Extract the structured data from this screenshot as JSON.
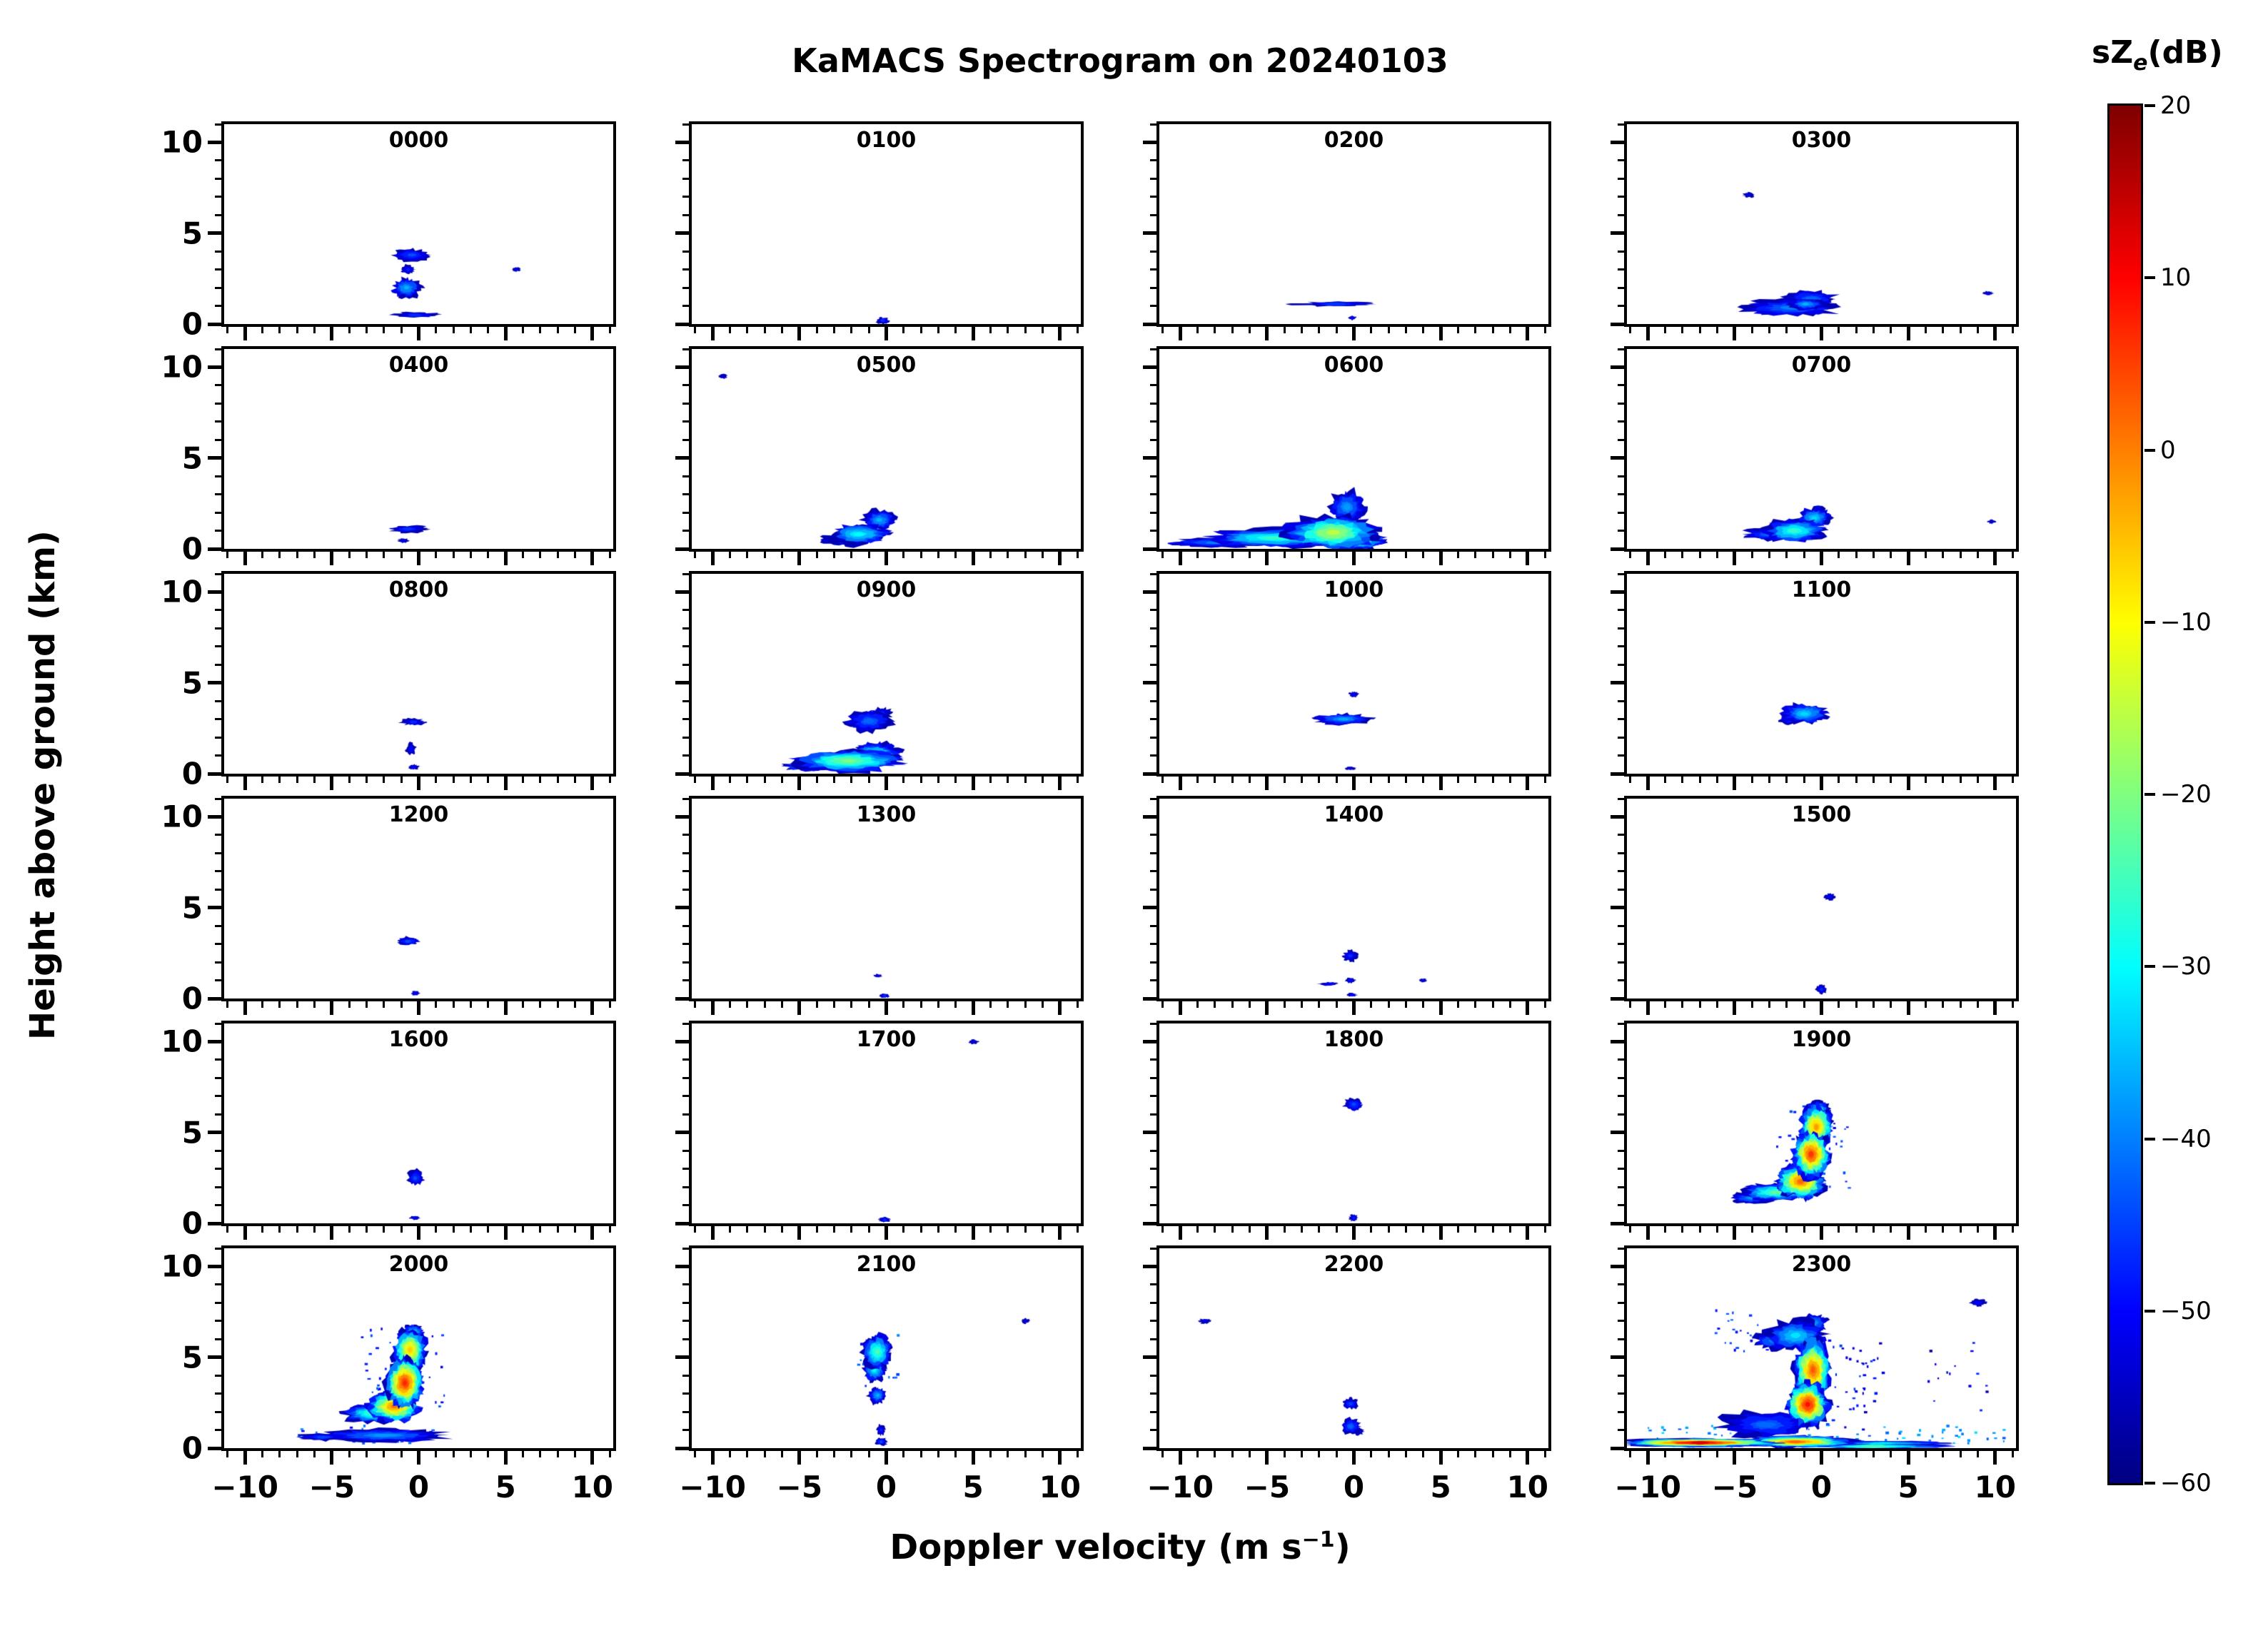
{
  "title": "KaMACS Spectrogram on 20240103",
  "xlabel": {
    "prefix": "Doppler velocity (m s",
    "sup": "−1",
    "suffix": ")"
  },
  "ylabel": "Height above ground (km)",
  "colorbar": {
    "title_prefix": "sZ",
    "title_sub": "e",
    "title_suffix": "(dB)",
    "min": -60,
    "max": 20,
    "colormap": "jet",
    "ticks": [
      {
        "value": 20,
        "label": "20"
      },
      {
        "value": 10,
        "label": "10"
      },
      {
        "value": 0,
        "label": "0"
      },
      {
        "value": -10,
        "label": "−10"
      },
      {
        "value": -20,
        "label": "−20"
      },
      {
        "value": -30,
        "label": "−30"
      },
      {
        "value": -40,
        "label": "−40"
      },
      {
        "value": -50,
        "label": "−50"
      },
      {
        "value": -60,
        "label": "−60"
      }
    ]
  },
  "axes": {
    "x_range": [
      -11.2,
      11.2
    ],
    "y_range": [
      0,
      11
    ],
    "x_major_ticks": [
      {
        "value": -10,
        "label": "−10"
      },
      {
        "value": -5,
        "label": "−5"
      },
      {
        "value": 0,
        "label": "0"
      },
      {
        "value": 5,
        "label": "5"
      },
      {
        "value": 10,
        "label": "10"
      }
    ],
    "y_major_ticks": [
      {
        "value": 0,
        "label": "0"
      },
      {
        "value": 5,
        "label": "5"
      },
      {
        "value": 10,
        "label": "10"
      }
    ],
    "x_minor_step": 1,
    "y_minor_step": 1
  },
  "chart_data": {
    "type": "heatmap",
    "title": "KaMACS Spectrogram on 20240103",
    "xlabel": "Doppler velocity (m s⁻¹)",
    "ylabel": "Height above ground (km)",
    "value_label": "sZe (dB)",
    "value_range": [
      -60,
      20
    ],
    "blob_format": "[doppler_velocity_m_s, height_km, half_width_m_s, half_height_km, peak_dB]",
    "speckle_format": "[doppler_velocity_m_s, height_km, half_width_m_s, half_height_km, dB, count]",
    "panels": [
      {
        "label": "0000",
        "blobs": [
          [
            -0.4,
            3.8,
            1.0,
            0.35,
            -44
          ],
          [
            -0.7,
            2.0,
            0.8,
            0.55,
            -36
          ],
          [
            -0.6,
            3.0,
            0.4,
            0.25,
            -48
          ],
          [
            -0.2,
            0.5,
            1.4,
            0.15,
            -47
          ],
          [
            5.6,
            3.0,
            0.25,
            0.12,
            -52
          ]
        ],
        "speckles": []
      },
      {
        "label": "0100",
        "blobs": [
          [
            -0.2,
            0.2,
            0.35,
            0.18,
            -46
          ]
        ],
        "speckles": []
      },
      {
        "label": "0200",
        "blobs": [
          [
            -1.0,
            1.1,
            2.2,
            0.13,
            -46
          ],
          [
            -0.1,
            0.35,
            0.25,
            0.12,
            -50
          ]
        ],
        "speckles": []
      },
      {
        "label": "0300",
        "blobs": [
          [
            -1.8,
            0.9,
            2.8,
            0.45,
            -40
          ],
          [
            -0.6,
            1.4,
            1.5,
            0.45,
            -42
          ],
          [
            -0.9,
            1.1,
            1.0,
            0.3,
            -36
          ],
          [
            -4.2,
            7.1,
            0.35,
            0.15,
            -52
          ],
          [
            9.6,
            1.7,
            0.3,
            0.12,
            -53
          ]
        ],
        "speckles": []
      },
      {
        "label": "0400",
        "blobs": [
          [
            -0.6,
            1.1,
            1.1,
            0.2,
            -46
          ],
          [
            -0.9,
            0.45,
            0.35,
            0.12,
            -51
          ]
        ],
        "speckles": []
      },
      {
        "label": "0500",
        "blobs": [
          [
            -1.6,
            0.8,
            1.7,
            0.55,
            -30
          ],
          [
            -0.4,
            1.6,
            0.9,
            0.55,
            -36
          ],
          [
            -2.5,
            0.5,
            1.2,
            0.3,
            -42
          ],
          [
            -9.4,
            9.5,
            0.25,
            0.15,
            -53
          ]
        ],
        "speckles": []
      },
      {
        "label": "0600",
        "blobs": [
          [
            -1.2,
            0.9,
            2.5,
            0.9,
            -15
          ],
          [
            -4.5,
            0.6,
            4.0,
            0.5,
            -26
          ],
          [
            -8.0,
            0.35,
            2.5,
            0.25,
            -40
          ],
          [
            -0.4,
            2.3,
            1.0,
            0.9,
            -38
          ],
          [
            0.2,
            0.5,
            1.5,
            0.5,
            -20
          ]
        ],
        "speckles": []
      },
      {
        "label": "0700",
        "blobs": [
          [
            -1.6,
            1.0,
            1.7,
            0.6,
            -26
          ],
          [
            -0.4,
            1.7,
            0.9,
            0.55,
            -33
          ],
          [
            -3.0,
            0.8,
            1.5,
            0.35,
            -42
          ],
          [
            9.8,
            1.5,
            0.25,
            0.12,
            -53
          ]
        ],
        "speckles": []
      },
      {
        "label": "0800",
        "blobs": [
          [
            -0.3,
            2.85,
            0.7,
            0.2,
            -47
          ],
          [
            -0.45,
            1.35,
            0.3,
            0.35,
            -50
          ],
          [
            -0.3,
            0.35,
            0.3,
            0.15,
            -50
          ]
        ],
        "speckles": []
      },
      {
        "label": "0900",
        "blobs": [
          [
            -2.2,
            0.7,
            3.0,
            0.6,
            -20
          ],
          [
            -0.6,
            1.1,
            1.3,
            0.6,
            -28
          ],
          [
            -1.0,
            2.9,
            1.3,
            0.6,
            -42
          ],
          [
            -0.3,
            3.3,
            0.6,
            0.35,
            -46
          ],
          [
            -4.5,
            0.4,
            1.5,
            0.25,
            -35
          ]
        ],
        "speckles": []
      },
      {
        "label": "1000",
        "blobs": [
          [
            -0.6,
            3.0,
            1.6,
            0.3,
            -37
          ],
          [
            0.0,
            4.35,
            0.3,
            0.15,
            -50
          ],
          [
            -0.2,
            0.3,
            0.3,
            0.1,
            -52
          ]
        ],
        "speckles": []
      },
      {
        "label": "1100",
        "blobs": [
          [
            -1.0,
            3.3,
            1.3,
            0.55,
            -33
          ],
          [
            -1.8,
            3.0,
            0.6,
            0.3,
            -45
          ]
        ],
        "speckles": []
      },
      {
        "label": "1200",
        "blobs": [
          [
            -0.6,
            3.15,
            0.7,
            0.22,
            -44
          ],
          [
            -0.2,
            0.3,
            0.25,
            0.15,
            -50
          ]
        ],
        "speckles": []
      },
      {
        "label": "1300",
        "blobs": [
          [
            -0.5,
            1.25,
            0.3,
            0.1,
            -52
          ],
          [
            -0.1,
            0.15,
            0.3,
            0.12,
            -47
          ]
        ],
        "speckles": []
      },
      {
        "label": "1400",
        "blobs": [
          [
            -0.2,
            2.35,
            0.45,
            0.3,
            -47
          ],
          [
            -0.2,
            1.0,
            0.3,
            0.15,
            -50
          ],
          [
            -1.4,
            0.8,
            0.6,
            0.1,
            -50
          ],
          [
            4.0,
            1.0,
            0.25,
            0.1,
            -52
          ],
          [
            -0.1,
            0.2,
            0.3,
            0.1,
            -50
          ]
        ],
        "speckles": []
      },
      {
        "label": "1500",
        "blobs": [
          [
            0.5,
            5.6,
            0.3,
            0.2,
            -50
          ],
          [
            0.0,
            0.5,
            0.3,
            0.25,
            -47
          ]
        ],
        "speckles": []
      },
      {
        "label": "1600",
        "blobs": [
          [
            -0.2,
            2.5,
            0.45,
            0.45,
            -44
          ],
          [
            -0.2,
            0.3,
            0.3,
            0.12,
            -50
          ]
        ],
        "speckles": []
      },
      {
        "label": "1700",
        "blobs": [
          [
            5.0,
            10.0,
            0.3,
            0.15,
            -52
          ],
          [
            -0.1,
            0.2,
            0.3,
            0.15,
            -47
          ]
        ],
        "speckles": []
      },
      {
        "label": "1800",
        "blobs": [
          [
            0.0,
            6.55,
            0.55,
            0.35,
            -44
          ],
          [
            0.0,
            0.3,
            0.25,
            0.2,
            -48
          ]
        ],
        "speckles": []
      },
      {
        "label": "1900",
        "blobs": [
          [
            -0.3,
            5.3,
            0.9,
            1.1,
            -2
          ],
          [
            -0.6,
            3.8,
            1.0,
            1.2,
            6
          ],
          [
            -1.2,
            2.3,
            1.3,
            0.9,
            2
          ],
          [
            -2.6,
            1.7,
            1.9,
            0.45,
            -22
          ],
          [
            -4.0,
            1.4,
            1.2,
            0.3,
            -38
          ],
          [
            -0.2,
            6.2,
            0.7,
            0.5,
            -28
          ]
        ],
        "speckles": [
          [
            -0.5,
            4.0,
            2.2,
            2.5,
            -47,
            40
          ]
        ]
      },
      {
        "label": "2000",
        "blobs": [
          [
            -0.5,
            5.4,
            0.9,
            1.1,
            -6
          ],
          [
            -0.8,
            3.6,
            1.0,
            1.3,
            7
          ],
          [
            -1.4,
            2.3,
            1.4,
            0.8,
            1
          ],
          [
            -2.6,
            1.9,
            1.6,
            0.5,
            -24
          ],
          [
            -0.3,
            6.4,
            0.6,
            0.4,
            -33
          ],
          [
            -2.0,
            0.7,
            3.4,
            0.35,
            -38
          ],
          [
            -5.5,
            0.6,
            1.5,
            0.2,
            -45
          ]
        ],
        "speckles": [
          [
            -1.0,
            4.5,
            2.5,
            2.5,
            -47,
            40
          ],
          [
            -3.0,
            0.8,
            4.0,
            0.5,
            -45,
            30
          ]
        ]
      },
      {
        "label": "2100",
        "blobs": [
          [
            -0.5,
            5.3,
            0.8,
            0.9,
            -24
          ],
          [
            -0.7,
            4.3,
            0.6,
            0.6,
            -30
          ],
          [
            -0.4,
            5.8,
            0.5,
            0.4,
            -35
          ],
          [
            -0.5,
            2.9,
            0.5,
            0.45,
            -36
          ],
          [
            -0.3,
            1.0,
            0.25,
            0.3,
            -48
          ],
          [
            -0.3,
            0.35,
            0.35,
            0.2,
            -44
          ],
          [
            8.0,
            7.0,
            0.25,
            0.15,
            -52
          ]
        ],
        "speckles": [
          [
            -0.5,
            4.8,
            1.2,
            1.5,
            -45,
            20
          ]
        ]
      },
      {
        "label": "2200",
        "blobs": [
          [
            -8.6,
            7.0,
            0.35,
            0.15,
            -52
          ],
          [
            -0.2,
            2.45,
            0.45,
            0.3,
            -45
          ],
          [
            -0.2,
            1.2,
            0.55,
            0.45,
            -42
          ],
          [
            0.3,
            0.9,
            0.3,
            0.2,
            -48
          ]
        ],
        "speckles": []
      },
      {
        "label": "2300",
        "blobs": [
          [
            -0.5,
            4.3,
            1.0,
            1.6,
            3
          ],
          [
            -0.8,
            2.4,
            1.1,
            1.1,
            9
          ],
          [
            -1.5,
            6.2,
            1.6,
            0.8,
            -32
          ],
          [
            -2.8,
            5.9,
            1.1,
            0.5,
            -40
          ],
          [
            -0.4,
            6.9,
            0.8,
            0.5,
            -38
          ],
          [
            -7.0,
            0.3,
            4.2,
            0.22,
            13
          ],
          [
            -1.5,
            0.35,
            3.0,
            0.3,
            2
          ],
          [
            -3.2,
            1.3,
            2.6,
            0.7,
            -42
          ],
          [
            3.5,
            0.25,
            4.0,
            0.15,
            -32
          ],
          [
            3.0,
            0.1,
            4.5,
            0.1,
            -25
          ],
          [
            9.0,
            8.0,
            0.5,
            0.2,
            -50
          ]
        ],
        "speckles": [
          [
            1.5,
            3.5,
            2.0,
            2.5,
            -50,
            50
          ],
          [
            0.0,
            0.7,
            10.5,
            0.6,
            -38,
            90
          ],
          [
            -4.0,
            6.5,
            2.5,
            1.2,
            -47,
            30
          ],
          [
            8.0,
            4.0,
            2.0,
            2.0,
            -52,
            15
          ]
        ]
      }
    ]
  }
}
